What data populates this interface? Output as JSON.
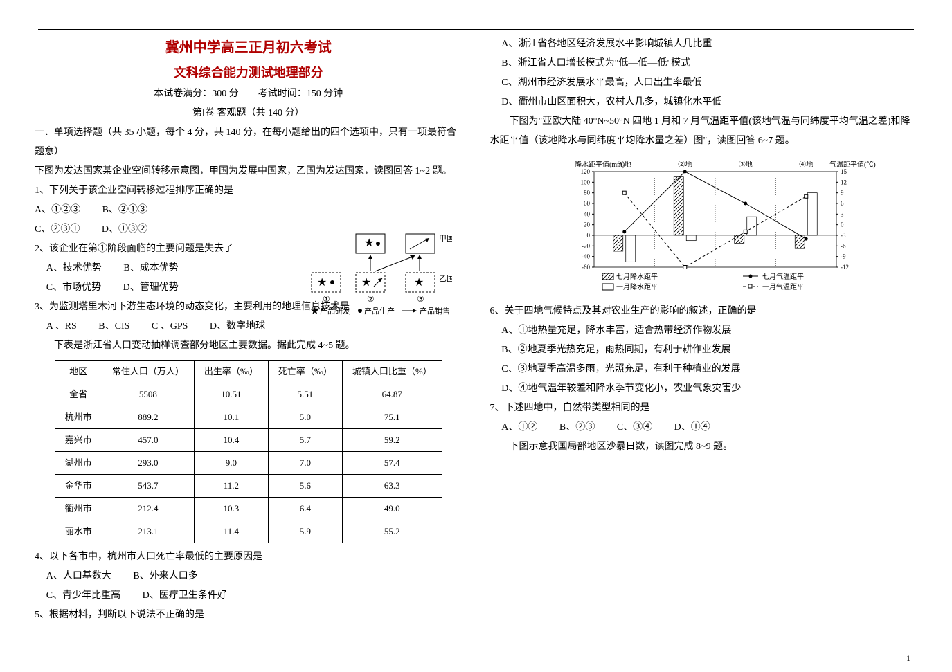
{
  "header": {
    "title": "冀州中学高三正月初六考试",
    "subtitle": "文科综合能力测试地理部分",
    "info": "本试卷满分：300 分　　考试时间：150 分钟",
    "section": "第Ⅰ卷 客观题（共 140 分）"
  },
  "intro": "一．单项选择题（共 35 小题，每个 4 分，共 140 分，在每小题给出的四个选项中，只有一项最符合题意）",
  "lead1": "下图为发达国家某企业空间转移示意图，甲国为发展中国家，乙国为发达国家，读图回答 1~2 题。",
  "q1": {
    "stem": "1、下列关于该企业空间转移过程排序正确的是",
    "optA": "A、①②③",
    "optB": "B、②①③",
    "optC": "C、②③①",
    "optD": "D、①③②"
  },
  "q2": {
    "stem": "2、该企业在第①阶段面临的主要问题是失去了",
    "optA": "A、技术优势",
    "optB": "B、成本优势",
    "optC": "C、市场优势",
    "optD": "D、管理优势"
  },
  "diagram1": {
    "colors": {
      "stroke": "#000"
    },
    "labels": {
      "jia": "甲国",
      "yi": "乙国",
      "s1": "①",
      "s2": "②",
      "s3": "③",
      "leg1": "产品研发",
      "leg2": "产品生产",
      "leg3": "产品销售"
    }
  },
  "q3": {
    "stem": "3、为监测塔里木河下游生态环境的动态变化，主要利用的地理信息技术是",
    "optA": "A 、RS",
    "optB": "B、CIS",
    "optC": "C 、GPS",
    "optD": "D、数字地球"
  },
  "lead2": "　　下表是浙江省人口变动抽样调查部分地区主要数据。据此完成 4~5 题。",
  "table": {
    "columns": [
      "地区",
      "常住人口（万人）",
      "出生率（‰）",
      "死亡率（‰）",
      "城镇人口比重（%）"
    ],
    "rows": [
      [
        "全省",
        "5508",
        "10.51",
        "5.51",
        "64.87"
      ],
      [
        "杭州市",
        "889.2",
        "10.1",
        "5.0",
        "75.1"
      ],
      [
        "嘉兴市",
        "457.0",
        "10.4",
        "5.7",
        "59.2"
      ],
      [
        "湖州市",
        "293.0",
        "9.0",
        "7.0",
        "57.4"
      ],
      [
        "金华市",
        "543.7",
        "11.2",
        "5.6",
        "63.3"
      ],
      [
        "衢州市",
        "212.4",
        "10.3",
        "6.4",
        "49.0"
      ],
      [
        "丽水市",
        "213.1",
        "11.4",
        "5.9",
        "55.2"
      ]
    ]
  },
  "q4": {
    "stem": "4、以下各市中，杭州市人口死亡率最低的主要原因是",
    "optA": "A、人口基数大",
    "optB": "B、外来人口多",
    "optC": "C、青少年比重高",
    "optD": "D、医疗卫生条件好"
  },
  "q5": {
    "stem": "5、根据材料，判断以下说法不正确的是",
    "optA": "A、浙江省各地区经济发展水平影响城镇人几比重",
    "optB": "B、浙江省人口增长模式为\"低—低—低\"模式",
    "optC": "C、湖州市经济发展水平最高，人口出生率最低",
    "optD": "D、衢州市山区面积大，农村人几多，城镇化水平低"
  },
  "lead3": "　　下图为\"亚欧大陆 40°N~50°N 四地 1 月和 7 月气温距平值(该地气温与同纬度平均气温之差)和降水距平值（该地降水与同纬度平均降水量之差）图\"，读图回答 6~7 题。",
  "chart": {
    "leftAxis": {
      "label": "降水距平值(mm)",
      "ticks": [
        120,
        100,
        80,
        60,
        40,
        20,
        0,
        -20,
        -40,
        -60
      ]
    },
    "rightAxis": {
      "label": "气温距平值(℃)",
      "ticks": [
        15,
        12,
        9,
        6,
        3,
        0,
        -3,
        -6,
        -9,
        -12
      ]
    },
    "sites": [
      "①地",
      "②地",
      "③地",
      "④地"
    ],
    "legend": {
      "julPr": "七月降水距平",
      "janPr": "一月降水距平",
      "julT": "七月气温距平",
      "janT": "一月气温距平"
    },
    "julPrecip": [
      -30,
      110,
      -15,
      -25
    ],
    "janPrecip": [
      -50,
      -10,
      35,
      80
    ],
    "julTemp": [
      -2,
      15,
      6,
      -4
    ],
    "janTemp": [
      9,
      -12,
      -2,
      8
    ],
    "colors": {
      "bar": "#000",
      "barFill": "#fff",
      "grid": "#000"
    }
  },
  "q6": {
    "stem": "6、关于四地气候特点及其对农业生产的影响的叙述，正确的是",
    "optA": "A、①地热量充足，降水丰富，适合热带经济作物发展",
    "optB": "B、②地夏季光热充足，雨热同期，有利于耕作业发展",
    "optC": "C、③地夏季高温多雨，光照充足，有利于种植业的发展",
    "optD": "D、④地气温年较差和降水季节变化小，农业气象灾害少"
  },
  "q7": {
    "stem": "7、下述四地中，自然带类型相同的是",
    "optA": "A、①②",
    "optB": "B、②③",
    "optC": "C、③④",
    "optD": "D、①④"
  },
  "lead4": "　　下图示意我国局部地区沙暴日数，读图完成 8~9 题。",
  "pagenum": "1"
}
